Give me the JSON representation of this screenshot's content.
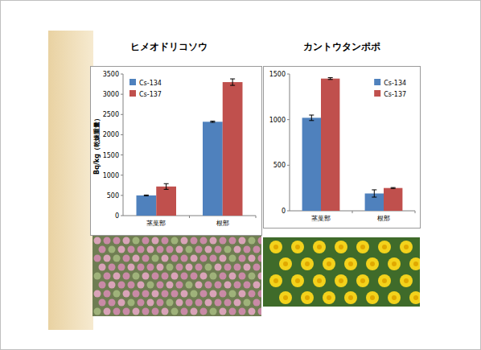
{
  "chart_data": [
    {
      "type": "bar",
      "title": "ヒメオドリコソウ",
      "y_label": "Bq/kg（乾燥重量）",
      "categories": [
        "茎葉部",
        "根部"
      ],
      "series": [
        {
          "name": "Cs-134",
          "color": "#4f81bd",
          "values": [
            500,
            2320
          ],
          "errors": [
            10,
            15
          ]
        },
        {
          "name": "Cs-137",
          "color": "#c0504d",
          "values": [
            720,
            3300
          ],
          "errors": [
            70,
            80
          ]
        }
      ],
      "ylim": [
        0,
        3500
      ],
      "yticks": [
        0,
        500,
        1000,
        1500,
        2000,
        2500,
        3000,
        3500
      ],
      "grid": false,
      "legend": "upper left"
    },
    {
      "type": "bar",
      "title": "カントウタンポポ",
      "categories": [
        "茎葉部",
        "根部"
      ],
      "series": [
        {
          "name": "Cs-134",
          "color": "#4f81bd",
          "values": [
            1020,
            190
          ],
          "errors": [
            30,
            40
          ]
        },
        {
          "name": "Cs-137",
          "color": "#c0504d",
          "values": [
            1450,
            250
          ],
          "errors": [
            10,
            5
          ]
        }
      ],
      "ylim": [
        0,
        1500
      ],
      "yticks": [
        0,
        500,
        1000,
        1500
      ],
      "grid": false,
      "legend": "upper right"
    }
  ]
}
